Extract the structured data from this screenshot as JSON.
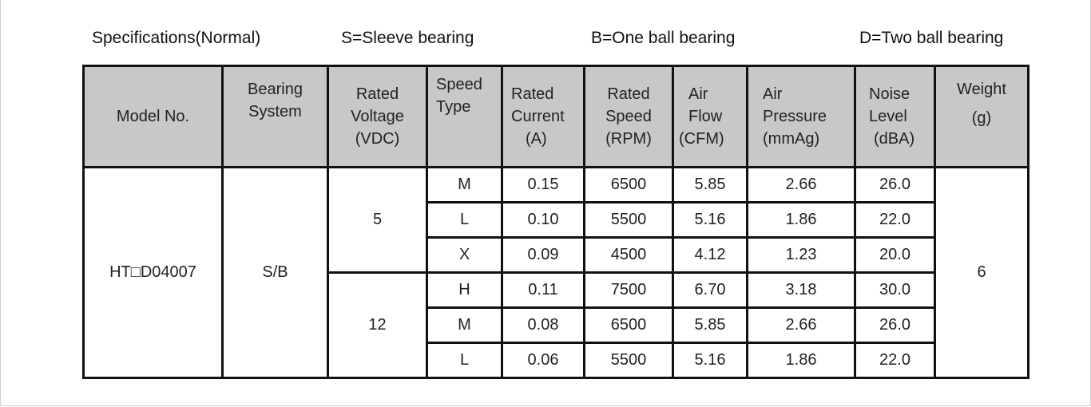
{
  "captions": {
    "spec": "Specifications(Normal)",
    "sleeve": "S=Sleeve bearing",
    "one_ball": "B=One ball bearing",
    "two_ball": "D=Two ball bearing"
  },
  "headers": {
    "model": [
      "Model No."
    ],
    "bearing": [
      "Bearing",
      "System"
    ],
    "voltage": [
      "Rated",
      "Voltage",
      "(VDC)"
    ],
    "speed_type": [
      "Speed",
      "Type"
    ],
    "current": [
      "Rated",
      "Current",
      "(A)"
    ],
    "rated_speed": [
      "Rated",
      "Speed",
      "(RPM)"
    ],
    "airflow": [
      "Air",
      "Flow",
      "(CFM)"
    ],
    "pressure": [
      "Air",
      "Pressure",
      "(mmAg)"
    ],
    "noise": [
      "Noise",
      "Level",
      "(dBA)"
    ],
    "weight": [
      "Weight",
      "(g)"
    ]
  },
  "model": "HT□D04007",
  "bearing_system": "S/B",
  "weight": "6",
  "voltage_groups": [
    {
      "voltage": "5",
      "rows": [
        {
          "type": "M",
          "current": "0.15",
          "speed": "6500",
          "flow": "5.85",
          "pressure": "2.66",
          "noise": "26.0"
        },
        {
          "type": "L",
          "current": "0.10",
          "speed": "5500",
          "flow": "5.16",
          "pressure": "1.86",
          "noise": "22.0"
        },
        {
          "type": "X",
          "current": "0.09",
          "speed": "4500",
          "flow": "4.12",
          "pressure": "1.23",
          "noise": "20.0"
        }
      ]
    },
    {
      "voltage": "12",
      "rows": [
        {
          "type": "H",
          "current": "0.11",
          "speed": "7500",
          "flow": "6.70",
          "pressure": "3.18",
          "noise": "30.0"
        },
        {
          "type": "M",
          "current": "0.08",
          "speed": "6500",
          "flow": "5.85",
          "pressure": "2.66",
          "noise": "26.0"
        },
        {
          "type": "L",
          "current": "0.06",
          "speed": "5500",
          "flow": "5.16",
          "pressure": "1.86",
          "noise": "22.0"
        }
      ]
    }
  ]
}
